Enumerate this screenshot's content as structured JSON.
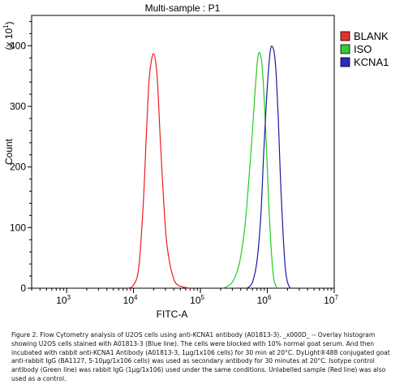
{
  "chart_data": {
    "type": "line",
    "title": "Multi-sample : P1",
    "xlabel": "FITC-A",
    "ylabel": "Count",
    "y_scale_note": "(x 10",
    "y_scale_exp": "1",
    "y_scale_close": ")",
    "xscale": "log",
    "xlim": [
      300,
      10000000
    ],
    "ylim": [
      0,
      450
    ],
    "x_ticks": [
      {
        "base": "10",
        "exp": "3",
        "value": 1000
      },
      {
        "base": "10",
        "exp": "4",
        "value": 10000
      },
      {
        "base": "10",
        "exp": "5",
        "value": 100000
      },
      {
        "base": "10",
        "exp": "6",
        "value": 1000000
      },
      {
        "base": "10",
        "exp": "7",
        "value": 10000000
      }
    ],
    "y_ticks": [
      {
        "label": "0",
        "value": 0
      },
      {
        "label": "100",
        "value": 100
      },
      {
        "label": "200",
        "value": 200
      },
      {
        "label": "300",
        "value": 300
      },
      {
        "label": "400",
        "value": 400
      }
    ],
    "legend_position": "right",
    "series": [
      {
        "name": "BLANK",
        "color": "#ee1c1c",
        "legend_color": "#e8312b",
        "x": [
          8000,
          10000,
          12000,
          14000,
          15500,
          17000,
          18500,
          20000,
          21500,
          23000,
          25000,
          28000,
          31000,
          35000,
          40000,
          45000,
          55000,
          70000
        ],
        "y": [
          0,
          5,
          35,
          140,
          250,
          340,
          375,
          387,
          372,
          335,
          250,
          150,
          80,
          40,
          15,
          6,
          2,
          0
        ]
      },
      {
        "name": "ISO",
        "color": "#22cc22",
        "legend_color": "#33cc33",
        "x": [
          220000,
          300000,
          380000,
          460000,
          530000,
          600000,
          660000,
          720000,
          770000,
          830000,
          900000,
          980000,
          1060000,
          1150000,
          1250000,
          1400000
        ],
        "y": [
          0,
          10,
          40,
          100,
          180,
          260,
          330,
          380,
          388,
          370,
          310,
          220,
          130,
          60,
          15,
          0
        ]
      },
      {
        "name": "KCNA1",
        "color": "#1a1aa0",
        "legend_color": "#2a2ac8",
        "x": [
          500000,
          600000,
          700000,
          800000,
          880000,
          960000,
          1040000,
          1120000,
          1200000,
          1280000,
          1360000,
          1460000,
          1560000,
          1700000,
          1850000,
          2000000,
          2200000
        ],
        "y": [
          0,
          10,
          45,
          120,
          220,
          300,
          360,
          395,
          398,
          385,
          350,
          280,
          190,
          100,
          35,
          10,
          0
        ]
      }
    ]
  },
  "caption": "Figure 2. Flow Cytometry analysis of U2OS cells using anti-KCNA1 antibody (A01813-3). _x000D_ -- Overlay histogram showing U2OS cells stained with A01813-3 (Blue line). The cells were blocked with 10% normal goat serum. And then incubated with rabbit anti-KCNA1 Antibody (A01813-3, 1µg/1x106 cells) for 30 min at 20°C. DyLight®488 conjugated goat anti-rabbit IgG (BA1127, 5-10µg/1x106 cells) was used as secondary antibody for 30 minutes at 20°C. Isotype control antibody (Green line) was rabbit IgG (1µg/1x106) used under the same conditions. Unlabelled sample (Red line) was also used as a control."
}
